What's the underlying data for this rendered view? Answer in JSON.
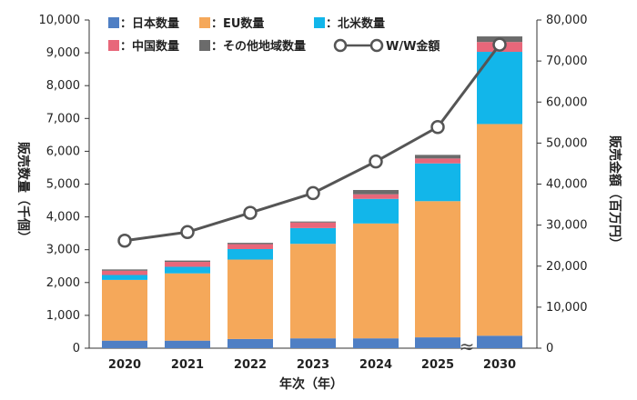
{
  "chart_data": {
    "type": "bar",
    "categories": [
      "2020",
      "2021",
      "2022",
      "2023",
      "2024",
      "2025",
      "2030"
    ],
    "xlabel": "年次（年）",
    "ylabel_left": "販売数量（千個）",
    "ylabel_right": "販売金額（百万円）",
    "ylim_left": [
      0,
      10000
    ],
    "ylim_right": [
      0,
      80000
    ],
    "yticks_left": [
      "0",
      "1,000",
      "2,000",
      "3,000",
      "4,000",
      "5,000",
      "6,000",
      "7,000",
      "8,000",
      "9,000",
      "10,000"
    ],
    "yticks_right": [
      "0",
      "10,000",
      "20,000",
      "30,000",
      "40,000",
      "50,000",
      "60,000",
      "70,000",
      "80,000"
    ],
    "axis_break_marker": "≈",
    "series": [
      {
        "name": "：日本数量",
        "color": "#4f7fc4",
        "values": [
          230,
          230,
          280,
          300,
          300,
          330,
          380
        ]
      },
      {
        "name": "：EU数量",
        "color": "#f5a85a",
        "values": [
          1850,
          2050,
          2420,
          2880,
          3500,
          4150,
          6450
        ]
      },
      {
        "name": "：北米数量",
        "color": "#12b6ea",
        "values": [
          150,
          200,
          320,
          480,
          750,
          1150,
          2200
        ]
      },
      {
        "name": "：中国数量",
        "color": "#e8677a",
        "values": [
          130,
          150,
          150,
          170,
          140,
          150,
          300
        ]
      },
      {
        "name": "：その他地域数量",
        "color": "#6b6b6b",
        "values": [
          40,
          40,
          40,
          30,
          130,
          110,
          170
        ]
      }
    ],
    "line": {
      "name": "W/W金額",
      "color": "#555555",
      "axis": "right",
      "values": [
        26200,
        28300,
        33000,
        37800,
        45500,
        53900,
        74000
      ]
    },
    "legend_position": "top"
  }
}
